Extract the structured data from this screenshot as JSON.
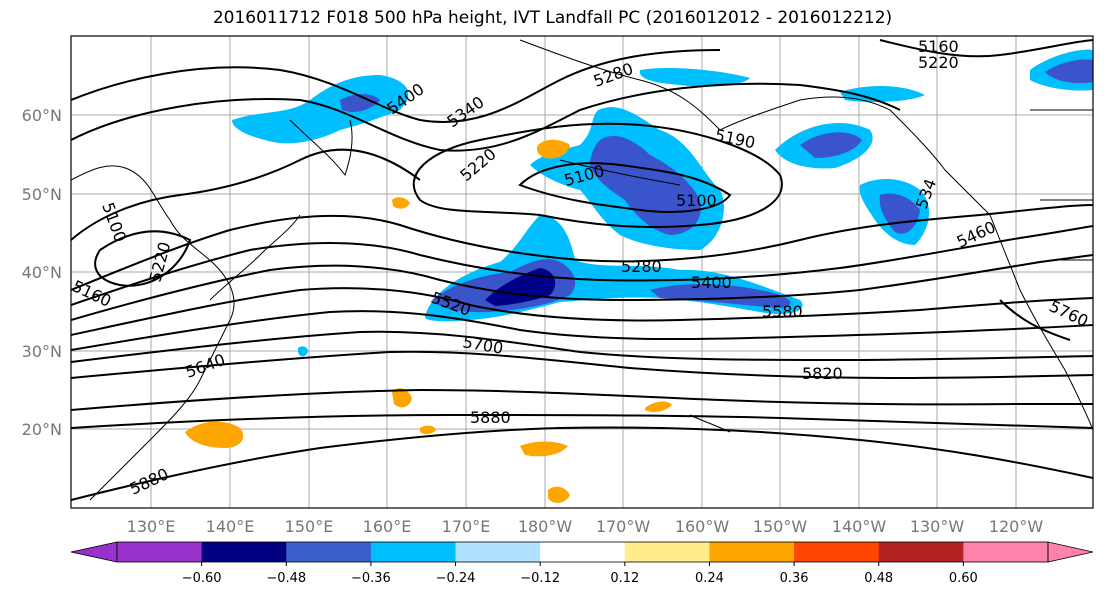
{
  "title": "2016011712 F018 500 hPa height, IVT Landfall PC (2016012012 - 2016012212)",
  "map": {
    "lat_labels": [
      "20°N",
      "30°N",
      "40°N",
      "50°N",
      "60°N"
    ],
    "lon_labels": [
      "130°E",
      "140°E",
      "150°E",
      "160°E",
      "170°E",
      "180°W",
      "170°W",
      "160°W",
      "150°W",
      "140°W",
      "130°W",
      "120°W"
    ],
    "contour_labels": [
      "5160",
      "5220",
      "5280",
      "5340",
      "5400",
      "5220",
      "5100",
      "5190",
      "5100",
      "5100",
      "5220",
      "5160",
      "5280",
      "5400",
      "5520",
      "5580",
      "5460",
      "5700",
      "5640",
      "5820",
      "5880",
      "5880",
      "5760",
      "534"
    ],
    "shading_colors": {
      "neg_strong": "#3a55cc",
      "neg_mid": "#00bfff",
      "neg_core": "#000088",
      "pos_mid": "#ffa500",
      "pos_light": "#ffe680"
    }
  },
  "colorbar": {
    "colors": [
      "#9932cc",
      "#000080",
      "#3a5fcd",
      "#00bfff",
      "#b0e2ff",
      "#ffffff",
      "#ffec8b",
      "#ffa500",
      "#ff4500",
      "#b22222",
      "#ff82ab",
      "#ff82ab"
    ],
    "tick_labels": [
      "-0.60",
      "-0.48",
      "-0.36",
      "-0.24",
      "-0.12",
      "0.12",
      "0.24",
      "0.36",
      "0.48",
      "0.60"
    ]
  }
}
